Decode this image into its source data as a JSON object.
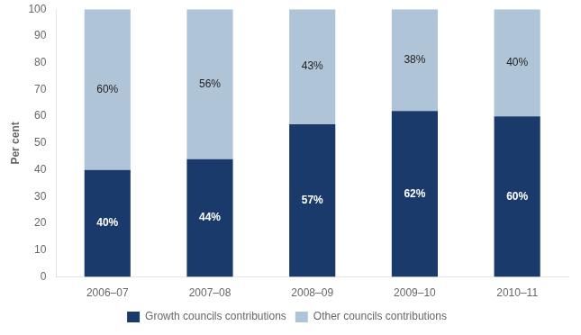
{
  "chart_data": {
    "type": "bar",
    "stacked": true,
    "categories": [
      "2006–07",
      "2007–08",
      "2008–09",
      "2009–10",
      "2010–11"
    ],
    "series": [
      {
        "name": "Growth councils contributions",
        "color": "#1a3a6b",
        "values": [
          40,
          44,
          57,
          62,
          60
        ],
        "value_labels": [
          "40%",
          "44%",
          "57%",
          "62%",
          "60%"
        ]
      },
      {
        "name": "Other councils contributions",
        "color": "#b0c4d8",
        "values": [
          60,
          56,
          43,
          38,
          40
        ],
        "value_labels": [
          "60%",
          "56%",
          "43%",
          "38%",
          "40%"
        ]
      }
    ],
    "ylabel": "Per cent",
    "ylim": [
      0,
      100
    ],
    "yticks": [
      0,
      10,
      20,
      30,
      40,
      50,
      60,
      70,
      80,
      90,
      100
    ],
    "grid": false,
    "legend": "bottom",
    "data_labels": true
  }
}
